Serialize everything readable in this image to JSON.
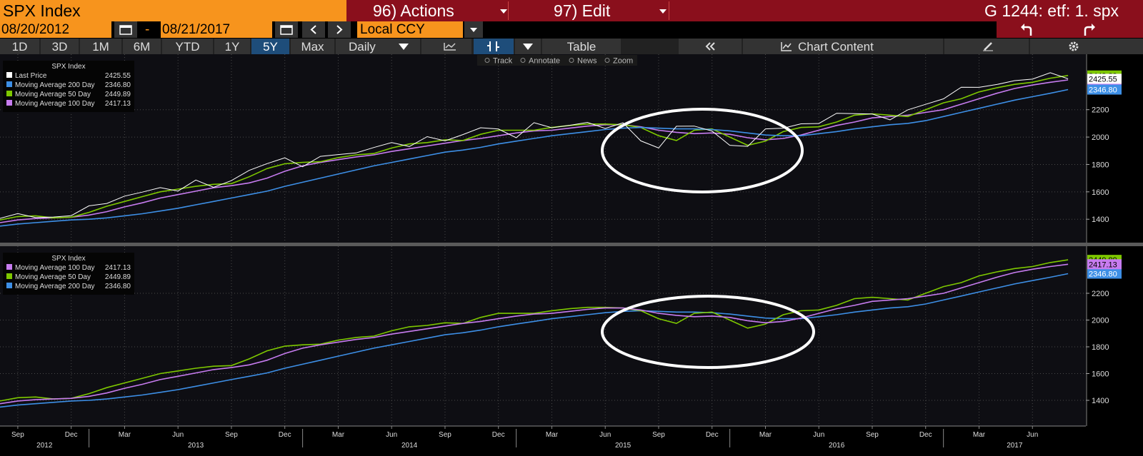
{
  "header": {
    "title": "SPX Index",
    "actions": "96) Actions",
    "edit": "97) Edit",
    "id": "G 1244: etf: 1. spx"
  },
  "toolbar": {
    "start_date": "08/20/2012",
    "separator": "-",
    "end_date": "08/21/2017",
    "currency": "Local CCY",
    "periods": [
      "1D",
      "3D",
      "1M",
      "6M",
      "YTD",
      "1Y",
      "5Y",
      "Max"
    ],
    "active_period": "5Y",
    "frequency": "Daily",
    "table": "Table",
    "chart_content": "Chart Content",
    "tools": [
      "Track",
      "Annotate",
      "News",
      "Zoom"
    ]
  },
  "chart_data": [
    {
      "type": "line",
      "legend_title": "SPX Index",
      "x": [
        "2012-08",
        "2012-09",
        "2012-10",
        "2012-11",
        "2012-12",
        "2013-01",
        "2013-02",
        "2013-03",
        "2013-04",
        "2013-05",
        "2013-06",
        "2013-07",
        "2013-08",
        "2013-09",
        "2013-10",
        "2013-11",
        "2013-12",
        "2014-01",
        "2014-02",
        "2014-03",
        "2014-04",
        "2014-05",
        "2014-06",
        "2014-07",
        "2014-08",
        "2014-09",
        "2014-10",
        "2014-11",
        "2014-12",
        "2015-01",
        "2015-02",
        "2015-03",
        "2015-04",
        "2015-05",
        "2015-06",
        "2015-07",
        "2015-08",
        "2015-09",
        "2015-10",
        "2015-11",
        "2015-12",
        "2016-01",
        "2016-02",
        "2016-03",
        "2016-04",
        "2016-05",
        "2016-06",
        "2016-07",
        "2016-08",
        "2016-09",
        "2016-10",
        "2016-11",
        "2016-12",
        "2017-01",
        "2017-02",
        "2017-03",
        "2017-04",
        "2017-05",
        "2017-06",
        "2017-07",
        "2017-08"
      ],
      "xlim": [
        "2012-08",
        "2017-09"
      ],
      "ylim": [
        1229,
        2605
      ],
      "yticks": [
        1400,
        1600,
        1800,
        2000,
        2200
      ],
      "grid": true,
      "series": [
        {
          "name": "Last Price",
          "color": "#ffffff",
          "values": [
            1406,
            1441,
            1412,
            1416,
            1426,
            1498,
            1515,
            1569,
            1598,
            1631,
            1606,
            1686,
            1633,
            1682,
            1757,
            1806,
            1848,
            1783,
            1859,
            1872,
            1884,
            1924,
            1960,
            1931,
            2003,
            1972,
            2018,
            2068,
            2059,
            1995,
            2105,
            2068,
            2086,
            2107,
            2063,
            2104,
            1972,
            1920,
            2079,
            2080,
            2044,
            1940,
            1932,
            2060,
            2065,
            2097,
            2099,
            2174,
            2171,
            2168,
            2126,
            2199,
            2239,
            2279,
            2364,
            2363,
            2384,
            2412,
            2423,
            2470,
            2425.55
          ]
        },
        {
          "name": "Moving Average 200 Day",
          "color": "#3d8fe6",
          "last_label": "2346.80",
          "values": [
            1350,
            1365,
            1375,
            1385,
            1395,
            1400,
            1410,
            1425,
            1440,
            1460,
            1480,
            1505,
            1530,
            1555,
            1580,
            1605,
            1640,
            1670,
            1700,
            1730,
            1760,
            1790,
            1815,
            1840,
            1865,
            1890,
            1905,
            1925,
            1950,
            1970,
            1990,
            2010,
            2025,
            2040,
            2055,
            2065,
            2070,
            2065,
            2060,
            2060,
            2055,
            2045,
            2030,
            2015,
            2010,
            2010,
            2025,
            2040,
            2060,
            2075,
            2090,
            2100,
            2120,
            2150,
            2180,
            2210,
            2240,
            2270,
            2295,
            2320,
            2346.8
          ]
        },
        {
          "name": "Moving Average 50 Day",
          "color": "#7ec800",
          "last_label": "2449.89",
          "values": [
            1395,
            1420,
            1425,
            1410,
            1415,
            1450,
            1495,
            1530,
            1565,
            1600,
            1620,
            1640,
            1655,
            1660,
            1710,
            1770,
            1805,
            1815,
            1820,
            1850,
            1870,
            1880,
            1920,
            1950,
            1960,
            1980,
            1975,
            2020,
            2050,
            2050,
            2050,
            2070,
            2085,
            2095,
            2095,
            2090,
            2070,
            2010,
            1975,
            2050,
            2060,
            2000,
            1940,
            1970,
            2040,
            2070,
            2075,
            2110,
            2160,
            2170,
            2160,
            2150,
            2200,
            2250,
            2280,
            2330,
            2360,
            2385,
            2400,
            2430,
            2449.89
          ]
        },
        {
          "name": "Moving Average 100 Day",
          "color": "#c77cf0",
          "last_label": "2417.13",
          "values": [
            1375,
            1395,
            1405,
            1410,
            1415,
            1430,
            1455,
            1490,
            1520,
            1555,
            1580,
            1605,
            1630,
            1645,
            1665,
            1700,
            1750,
            1790,
            1815,
            1835,
            1855,
            1870,
            1895,
            1915,
            1935,
            1955,
            1975,
            1990,
            2010,
            2030,
            2045,
            2050,
            2065,
            2080,
            2090,
            2090,
            2075,
            2050,
            2035,
            2025,
            2030,
            2020,
            1995,
            1980,
            1990,
            2015,
            2050,
            2085,
            2110,
            2140,
            2150,
            2160,
            2180,
            2200,
            2240,
            2280,
            2320,
            2355,
            2380,
            2400,
            2417.13
          ]
        }
      ]
    },
    {
      "type": "line",
      "legend_title": "SPX Index",
      "x": [
        "2012-08",
        "2012-09",
        "2012-10",
        "2012-11",
        "2012-12",
        "2013-01",
        "2013-02",
        "2013-03",
        "2013-04",
        "2013-05",
        "2013-06",
        "2013-07",
        "2013-08",
        "2013-09",
        "2013-10",
        "2013-11",
        "2013-12",
        "2014-01",
        "2014-02",
        "2014-03",
        "2014-04",
        "2014-05",
        "2014-06",
        "2014-07",
        "2014-08",
        "2014-09",
        "2014-10",
        "2014-11",
        "2014-12",
        "2015-01",
        "2015-02",
        "2015-03",
        "2015-04",
        "2015-05",
        "2015-06",
        "2015-07",
        "2015-08",
        "2015-09",
        "2015-10",
        "2015-11",
        "2015-12",
        "2016-01",
        "2016-02",
        "2016-03",
        "2016-04",
        "2016-05",
        "2016-06",
        "2016-07",
        "2016-08",
        "2016-09",
        "2016-10",
        "2016-11",
        "2016-12",
        "2017-01",
        "2017-02",
        "2017-03",
        "2017-04",
        "2017-05",
        "2017-06",
        "2017-07",
        "2017-08"
      ],
      "xlim": [
        "2012-08",
        "2017-09"
      ],
      "ylim": [
        1208,
        2552
      ],
      "yticks": [
        1400,
        1600,
        1800,
        2000,
        2200
      ],
      "grid": true,
      "xticks": [
        {
          "value": "2012-09",
          "label": "Sep"
        },
        {
          "value": "2012-12",
          "label": "Dec"
        },
        {
          "value": "2013-03",
          "label": "Mar"
        },
        {
          "value": "2013-06",
          "label": "Jun"
        },
        {
          "value": "2013-09",
          "label": "Sep"
        },
        {
          "value": "2013-12",
          "label": "Dec"
        },
        {
          "value": "2014-03",
          "label": "Mar"
        },
        {
          "value": "2014-06",
          "label": "Jun"
        },
        {
          "value": "2014-09",
          "label": "Sep"
        },
        {
          "value": "2014-12",
          "label": "Dec"
        },
        {
          "value": "2015-03",
          "label": "Mar"
        },
        {
          "value": "2015-06",
          "label": "Jun"
        },
        {
          "value": "2015-09",
          "label": "Sep"
        },
        {
          "value": "2015-12",
          "label": "Dec"
        },
        {
          "value": "2016-03",
          "label": "Mar"
        },
        {
          "value": "2016-06",
          "label": "Jun"
        },
        {
          "value": "2016-09",
          "label": "Sep"
        },
        {
          "value": "2016-12",
          "label": "Dec"
        },
        {
          "value": "2017-03",
          "label": "Mar"
        },
        {
          "value": "2017-06",
          "label": "Jun"
        }
      ],
      "years": [
        2012,
        2013,
        2014,
        2015,
        2016,
        2017
      ],
      "series": [
        {
          "name": "Moving Average 100 Day",
          "color": "#c77cf0",
          "last_label": "2417.13",
          "values": [
            1375,
            1395,
            1405,
            1410,
            1415,
            1430,
            1455,
            1490,
            1520,
            1555,
            1580,
            1605,
            1630,
            1645,
            1665,
            1700,
            1750,
            1790,
            1815,
            1835,
            1855,
            1870,
            1895,
            1915,
            1935,
            1955,
            1975,
            1990,
            2010,
            2030,
            2045,
            2050,
            2065,
            2080,
            2090,
            2090,
            2075,
            2050,
            2035,
            2025,
            2030,
            2020,
            1995,
            1980,
            1990,
            2015,
            2050,
            2085,
            2110,
            2140,
            2150,
            2160,
            2180,
            2200,
            2240,
            2280,
            2320,
            2355,
            2380,
            2400,
            2417.13
          ]
        },
        {
          "name": "Moving Average 50 Day",
          "color": "#7ec800",
          "last_label": "2449.89",
          "values": [
            1395,
            1420,
            1425,
            1410,
            1415,
            1450,
            1495,
            1530,
            1565,
            1600,
            1620,
            1640,
            1655,
            1660,
            1710,
            1770,
            1805,
            1815,
            1820,
            1850,
            1870,
            1880,
            1920,
            1950,
            1960,
            1980,
            1975,
            2020,
            2050,
            2050,
            2050,
            2070,
            2085,
            2095,
            2095,
            2090,
            2070,
            2010,
            1975,
            2050,
            2060,
            2000,
            1940,
            1970,
            2040,
            2070,
            2075,
            2110,
            2160,
            2170,
            2160,
            2150,
            2200,
            2250,
            2280,
            2330,
            2360,
            2385,
            2400,
            2430,
            2449.89
          ]
        },
        {
          "name": "Moving Average 200 Day",
          "color": "#3d8fe6",
          "last_label": "2346.80",
          "values": [
            1350,
            1365,
            1375,
            1385,
            1395,
            1400,
            1410,
            1425,
            1440,
            1460,
            1480,
            1505,
            1530,
            1555,
            1580,
            1605,
            1640,
            1670,
            1700,
            1730,
            1760,
            1790,
            1815,
            1840,
            1865,
            1890,
            1905,
            1925,
            1950,
            1970,
            1990,
            2010,
            2025,
            2040,
            2055,
            2065,
            2070,
            2065,
            2060,
            2060,
            2055,
            2045,
            2030,
            2015,
            2010,
            2010,
            2025,
            2040,
            2060,
            2075,
            2090,
            2100,
            2120,
            2150,
            2180,
            2210,
            2240,
            2270,
            2295,
            2320,
            2346.8
          ]
        }
      ]
    }
  ]
}
